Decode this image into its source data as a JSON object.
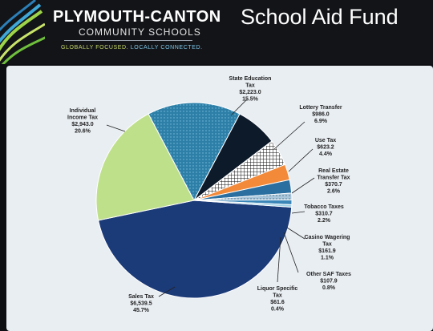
{
  "header": {
    "org_name": "PLYMOUTH-CANTON",
    "org_sub": "COMMUNITY SCHOOLS",
    "tagline_a": "GLOBALLY FOCUSED.",
    "tagline_b": "LOCALLY CONNECTED.",
    "title": "School Aid Fund"
  },
  "colors": {
    "banner_bg": "#121417",
    "slide_bg": "#0e0f12",
    "chart_bg": "#e9eef3"
  },
  "chart_data": {
    "type": "pie",
    "title": "",
    "slices": [
      {
        "name": "Sales Tax",
        "amount": "$6,539.5",
        "pct": "45.7%",
        "value": 45.7,
        "color": "#1b3a78",
        "icon": "solid"
      },
      {
        "name": "Individual Income Tax",
        "amount": "$2,943.0",
        "pct": "20.6%",
        "value": 20.6,
        "color": "#bfe08a",
        "icon": "solid"
      },
      {
        "name": "State Education Tax",
        "amount": "$2,223.0",
        "pct": "15.5%",
        "value": 15.5,
        "color": "#2d7fa8",
        "icon": "dotted"
      },
      {
        "name": "Lottery Transfer",
        "amount": "$986.0",
        "pct": "6.9%",
        "value": 6.9,
        "color": "#0d1a2a",
        "icon": "solid"
      },
      {
        "name": "Use Tax",
        "amount": "$623.2",
        "pct": "4.4%",
        "value": 4.4,
        "color": "#ffffff",
        "icon": "grid"
      },
      {
        "name": "Real Estate Transfer Tax",
        "amount": "$370.7",
        "pct": "2.6%",
        "value": 2.6,
        "color": "#f28a3a",
        "icon": "solid"
      },
      {
        "name": "Tobacco Taxes",
        "amount": "$310.7",
        "pct": "2.2%",
        "value": 2.2,
        "color": "#2a6fa0",
        "icon": "solid"
      },
      {
        "name": "Casino Wagering Tax",
        "amount": "$161.9",
        "pct": "1.1%",
        "value": 1.1,
        "color": "#a9c6da",
        "icon": "dashed"
      },
      {
        "name": "Other SAF Taxes",
        "amount": "$107.9",
        "pct": "0.8%",
        "value": 0.8,
        "color": "#3a86b8",
        "icon": "solid"
      },
      {
        "name": "Liquor Specific Tax",
        "amount": "$61.6",
        "pct": "0.4%",
        "value": 0.4,
        "color": "#9dd0e6",
        "icon": "solid"
      }
    ],
    "labels": [
      {
        "lines": [
          "State Education",
          "Tax",
          "$2,223.0",
          "15.5%"
        ]
      },
      {
        "lines": [
          "Lottery Transfer",
          "$986.0",
          "6.9%"
        ]
      },
      {
        "lines": [
          "Individual",
          "Income Tax",
          "$2,943.0",
          "20.6%"
        ]
      },
      {
        "lines": [
          "Use Tax",
          "$623.2",
          "4.4%"
        ]
      },
      {
        "lines": [
          "Real Estate",
          "Transfer Tax",
          "$370.7",
          "2.6%"
        ]
      },
      {
        "lines": [
          "Tobacco Taxes",
          "$310.7",
          "2.2%"
        ]
      },
      {
        "lines": [
          "Casino Wagering",
          "Tax",
          "$161.9",
          "1.1%"
        ]
      },
      {
        "lines": [
          "Other SAF Taxes",
          "$107.9",
          "0.8%"
        ]
      },
      {
        "lines": [
          "Liquor Specific",
          "Tax",
          "$61.6",
          "0.4%"
        ]
      },
      {
        "lines": [
          "Sales Tax",
          "$6,539.5",
          "45.7%"
        ]
      }
    ]
  }
}
